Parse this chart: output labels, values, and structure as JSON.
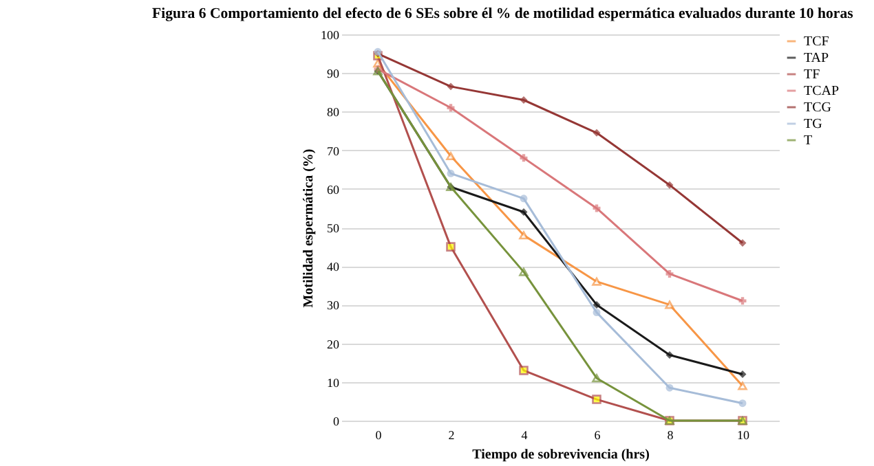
{
  "chart_data": {
    "type": "line",
    "title": "Figura 6 Comportamiento del efecto de 6 SEs sobre él % de motilidad espermática evaluados durante 10 horas",
    "xlabel": "Tiempo de sobrevivencia (hrs)",
    "ylabel": "Motilidad espermática (%)",
    "x": [
      0,
      2,
      4,
      6,
      8,
      10
    ],
    "xlim": [
      -1,
      11
    ],
    "xticks": [
      0,
      2,
      4,
      6,
      8,
      10
    ],
    "ylim": [
      0,
      100
    ],
    "yticks": [
      0,
      10,
      20,
      30,
      40,
      50,
      60,
      70,
      80,
      90,
      100
    ],
    "grid": "y",
    "legend": "right",
    "series": [
      {
        "name": "TCF",
        "color": "#f79646",
        "marker": "triangle",
        "values": [
          92.5,
          68.5,
          48,
          36,
          30,
          9
        ]
      },
      {
        "name": "TAP",
        "color": "#1a1a1a",
        "marker": "diamond",
        "values": [
          90.5,
          60.5,
          54,
          30,
          17,
          12
        ]
      },
      {
        "name": "TF",
        "color": "#b2504e",
        "marker": "square",
        "values": [
          94.5,
          45,
          13,
          5.5,
          0,
          0
        ]
      },
      {
        "name": "TCAP",
        "color": "#d9777a",
        "marker": "cross",
        "values": [
          91,
          81,
          68,
          55,
          38,
          31
        ]
      },
      {
        "name": "TCG",
        "color": "#953735",
        "marker": "diamond",
        "values": [
          95,
          86.5,
          83,
          74.5,
          61,
          46
        ]
      },
      {
        "name": "TG",
        "color": "#a6bcd8",
        "marker": "circle",
        "values": [
          95.5,
          64,
          57.5,
          28,
          8.5,
          4.5
        ]
      },
      {
        "name": "T",
        "color": "#77933c",
        "marker": "triangle",
        "values": [
          90.5,
          60.5,
          38.5,
          11,
          0,
          0
        ]
      }
    ]
  }
}
